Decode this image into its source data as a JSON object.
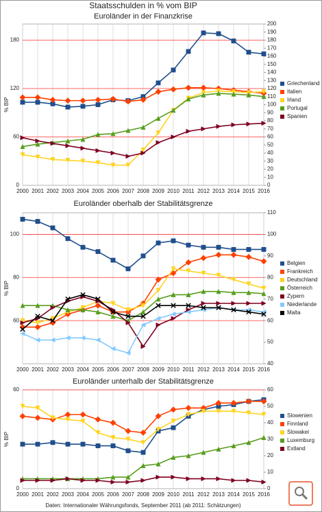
{
  "title": "Staatsschulden in % vom BIP",
  "source": "Daten: Internationaler Währungsfonds, September 2011 (ab 2011: Schätzungen)",
  "chart_data": [
    {
      "type": "line",
      "title": "Euroländer in der Finanzkrise",
      "ylabel": "% BIP",
      "categories": [
        "2000",
        "2001",
        "2002",
        "2003",
        "2004",
        "2005",
        "2006",
        "2007",
        "2008",
        "2009",
        "2010",
        "2011",
        "2012",
        "2013",
        "2014",
        "2015",
        "2016"
      ],
      "ylim": [
        0,
        200
      ],
      "yticks": [
        0,
        60,
        120,
        180
      ],
      "y2lim": [
        0,
        200
      ],
      "y2ticks": [
        0,
        10,
        20,
        30,
        40,
        50,
        60,
        70,
        80,
        90,
        100,
        110,
        120,
        130,
        140,
        150,
        160,
        170,
        180,
        190,
        200
      ],
      "series": [
        {
          "name": "Griechenland",
          "color": "#1f4e8c",
          "marker": "square",
          "values": [
            103,
            103,
            101,
            97,
            98,
            100,
            106,
            105,
            110,
            127,
            143,
            166,
            189,
            188,
            179,
            165,
            163
          ]
        },
        {
          "name": "Italien",
          "color": "#ff4000",
          "marker": "diamond",
          "values": [
            109,
            109,
            106,
            105,
            105,
            106,
            107,
            104,
            106,
            116,
            119,
            121,
            121,
            120,
            118,
            116,
            114
          ]
        },
        {
          "name": "Irland",
          "color": "#ffd320",
          "marker": "tri-down",
          "values": [
            38,
            35,
            32,
            31,
            30,
            28,
            25,
            25,
            44,
            65,
            93,
            108,
            115,
            117,
            116,
            115,
            116
          ]
        },
        {
          "name": "Portugal",
          "color": "#579d1c",
          "marker": "tri-up",
          "values": [
            48,
            51,
            53,
            55,
            57,
            63,
            64,
            68,
            72,
            83,
            93,
            107,
            112,
            114,
            113,
            112,
            110
          ]
        },
        {
          "name": "Spanien",
          "color": "#7e0021",
          "marker": "tri-right",
          "values": [
            59,
            55,
            52,
            49,
            46,
            43,
            40,
            36,
            40,
            53,
            60,
            67,
            70,
            73,
            75,
            76,
            77
          ]
        }
      ]
    },
    {
      "type": "line",
      "title": "Euroländer oberhalb der Stabilitätsgrenze",
      "ylabel": "% BIP",
      "categories": [
        "2000",
        "2001",
        "2002",
        "2003",
        "2004",
        "2005",
        "2006",
        "2007",
        "2008",
        "2009",
        "2010",
        "2011",
        "2012",
        "2013",
        "2014",
        "2015",
        "2016"
      ],
      "ylim": [
        40,
        110
      ],
      "yticks": [
        60,
        80,
        100
      ],
      "y2lim": [
        40,
        110
      ],
      "y2ticks": [
        40,
        50,
        60,
        70,
        80,
        90,
        100,
        110
      ],
      "series": [
        {
          "name": "Belgien",
          "color": "#1f4e8c",
          "marker": "square",
          "values": [
            107,
            106,
            103,
            98,
            94,
            92,
            88,
            84,
            90,
            96,
            97,
            95,
            94,
            94,
            93,
            93,
            93
          ]
        },
        {
          "name": "Frankreich",
          "color": "#ff4000",
          "marker": "diamond",
          "values": [
            57,
            57,
            59,
            63,
            65,
            67,
            64,
            64,
            68,
            79,
            82,
            87,
            89,
            90.5,
            90.5,
            89.5,
            87.5
          ]
        },
        {
          "name": "Deutschland",
          "color": "#ffd320",
          "marker": "tri-down",
          "values": [
            60,
            59,
            61,
            64,
            66,
            69,
            68,
            65,
            67,
            74,
            84,
            83,
            82,
            81,
            79,
            77,
            75
          ]
        },
        {
          "name": "Österreich",
          "color": "#579d1c",
          "marker": "tri-up",
          "values": [
            67,
            67,
            67,
            65,
            65,
            64,
            62,
            60,
            64,
            70,
            72,
            72,
            73.5,
            73.5,
            73,
            73,
            72.5
          ]
        },
        {
          "name": "Zypern",
          "color": "#7e0021",
          "marker": "tri-right",
          "values": [
            59,
            61,
            66,
            69,
            71,
            69,
            65,
            59,
            48,
            58,
            61,
            65,
            68,
            68,
            68,
            68,
            68
          ]
        },
        {
          "name": "Niederlande",
          "color": "#83caff",
          "marker": "tri-left",
          "values": [
            54,
            51,
            51,
            52,
            52,
            51,
            47,
            45,
            58,
            61,
            63,
            64,
            65,
            66,
            65,
            65,
            64
          ]
        },
        {
          "name": "Malta",
          "color": "#000000",
          "marker": "cross",
          "values": [
            56,
            62,
            60,
            70,
            72,
            70,
            64,
            62,
            62,
            67,
            67,
            67,
            66,
            66,
            65,
            64,
            63
          ]
        }
      ]
    },
    {
      "type": "line",
      "title": "Euroländer unterhalb der Stabilitätsgrenze",
      "ylabel": "% BIP",
      "categories": [
        "2000",
        "2001",
        "2002",
        "2003",
        "2004",
        "2005",
        "2006",
        "2007",
        "2008",
        "2009",
        "2010",
        "2011",
        "2012",
        "2013",
        "2014",
        "2015",
        "2016"
      ],
      "ylim": [
        0,
        60
      ],
      "yticks": [
        0,
        60
      ],
      "y2lim": [
        0,
        60
      ],
      "y2ticks": [
        0,
        10,
        20,
        30,
        40,
        50,
        60
      ],
      "series": [
        {
          "name": "Slowenien",
          "color": "#1f4e8c",
          "marker": "square",
          "values": [
            27,
            27,
            28,
            27,
            27,
            26,
            26,
            23,
            22,
            35,
            37,
            44,
            48,
            50,
            51,
            53,
            54
          ]
        },
        {
          "name": "Finnland",
          "color": "#ff4000",
          "marker": "diamond",
          "values": [
            44,
            43,
            42,
            45,
            45,
            42,
            40,
            35,
            34,
            44,
            48,
            49,
            49,
            52,
            52,
            53,
            53
          ]
        },
        {
          "name": "Slowakei",
          "color": "#ffd320",
          "marker": "tri-down",
          "values": [
            50,
            49,
            43,
            42,
            41,
            34,
            31,
            30,
            28,
            36,
            41,
            45,
            47,
            47,
            47,
            46,
            45
          ]
        },
        {
          "name": "Luxemburg",
          "color": "#579d1c",
          "marker": "tri-up",
          "values": [
            6,
            6,
            6,
            6,
            6,
            6,
            7,
            7,
            14,
            15,
            19,
            20,
            22,
            24,
            26,
            28,
            31
          ]
        },
        {
          "name": "Estland",
          "color": "#7e0021",
          "marker": "tri-right",
          "values": [
            5,
            5,
            5,
            6,
            5,
            5,
            4,
            4,
            5,
            7,
            7,
            6,
            6,
            6,
            5,
            5,
            4
          ]
        }
      ]
    }
  ]
}
